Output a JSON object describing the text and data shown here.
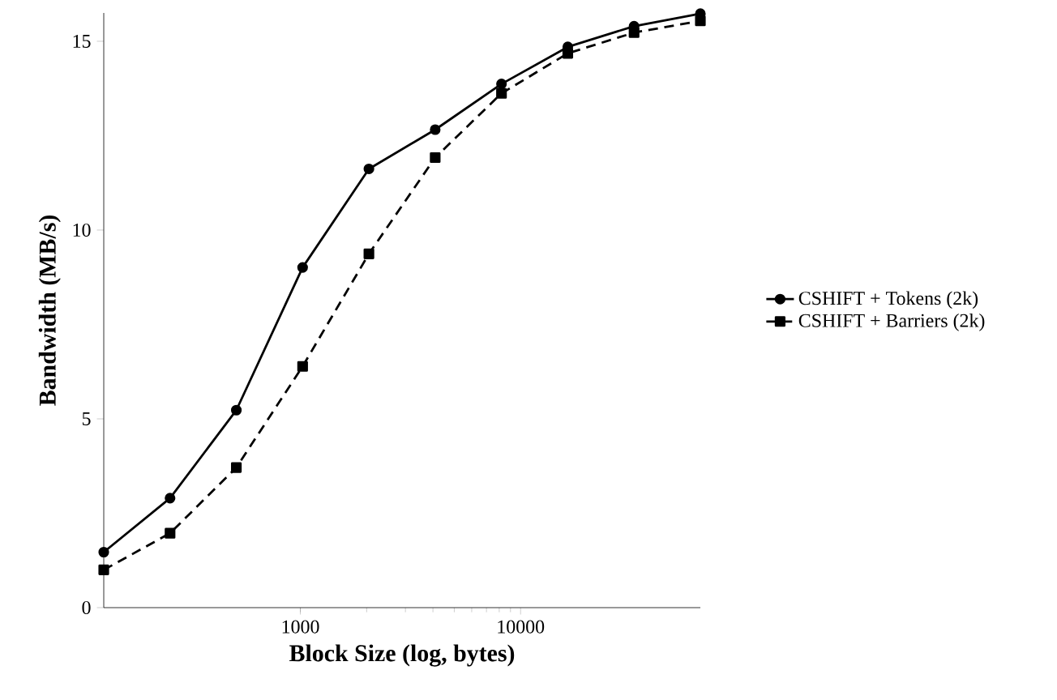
{
  "chart_data": {
    "type": "line",
    "xlabel": "Block Size (log, bytes)",
    "ylabel": "Bandwidth (MB/s)",
    "x": [
      128,
      256,
      512,
      1024,
      2048,
      4096,
      8192,
      16384,
      32768,
      65536
    ],
    "series": [
      {
        "name": "CSHIFT + Tokens (2k)",
        "color": "#000000",
        "marker": "circle",
        "line_style": "solid",
        "values": [
          1.47,
          2.9,
          5.23,
          9.01,
          11.62,
          12.66,
          13.87,
          14.85,
          15.4,
          15.73
        ]
      },
      {
        "name": "CSHIFT + Barriers (2k)",
        "color": "#000000",
        "marker": "square",
        "line_style": "dashed",
        "values": [
          1.0,
          1.97,
          3.71,
          6.39,
          9.37,
          11.92,
          13.62,
          14.68,
          15.23,
          15.54
        ]
      }
    ],
    "log": "x",
    "xlim": [
      128,
      65536
    ],
    "ylim": [
      0,
      15.75
    ],
    "xticks": [
      1000,
      10000
    ],
    "yticks": [
      0,
      5,
      10,
      15
    ],
    "grid": false,
    "legend": "right"
  }
}
